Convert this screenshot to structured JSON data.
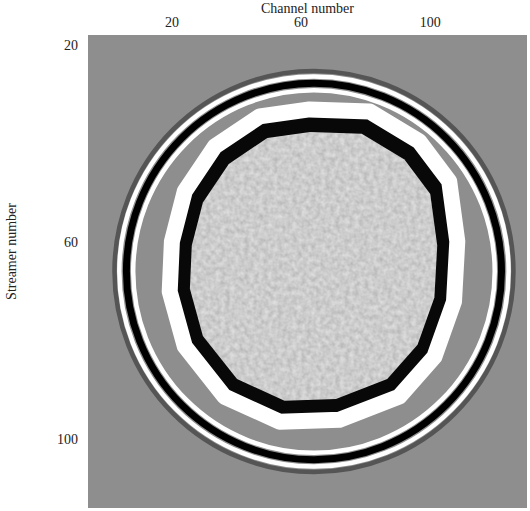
{
  "chart_data": {
    "type": "image",
    "x_label": "Channel number",
    "y_label": "Streamer number",
    "xlim": [
      -6,
      130
    ],
    "ylim": [
      18,
      114
    ],
    "xticks": [
      20,
      60,
      100
    ],
    "yticks": [
      20,
      60,
      100
    ],
    "center": {
      "x": 64,
      "y": 66
    },
    "rings": [
      {
        "rx": 61.8,
        "ry": 40.7,
        "color": "#555555"
      },
      {
        "rx": 60.3,
        "ry": 39.6,
        "color": "#ffffff"
      },
      {
        "rx": 58.1,
        "ry": 38.2,
        "color": "#000000"
      },
      {
        "rx": 56.0,
        "ry": 36.8,
        "color": "#ffffff"
      }
    ],
    "boundary": {
      "x": [
        62.6,
        81.2,
        96.6,
        105.9,
        108.4,
        107.4,
        101.3,
        90.4,
        71.9,
        53.4,
        36.3,
        24.0,
        19.3,
        20.0,
        24.0,
        33.3,
        47.2
      ],
      "y": [
        33.1,
        33.5,
        39.6,
        47.7,
        59.9,
        72.1,
        83.3,
        91.4,
        96.1,
        96.5,
        91.4,
        81.2,
        70.1,
        59.9,
        49.7,
        40.6,
        34.5
      ]
    }
  }
}
